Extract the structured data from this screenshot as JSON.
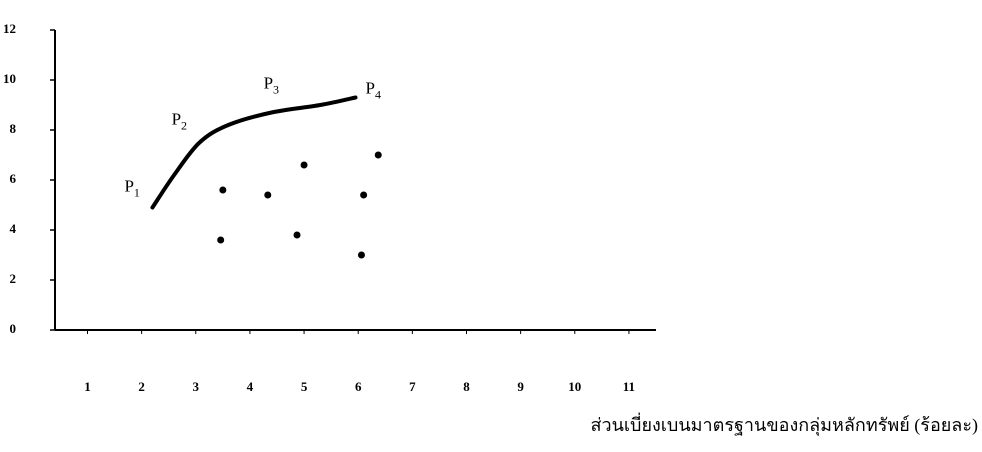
{
  "chart_data": {
    "type": "scatter",
    "x_label": "ส่วนเบี่ยงเบนมาตรฐานของกลุ่มหลักทรัพย์ (ร้อยละ)",
    "xlim": [
      0.4,
      11.5
    ],
    "xticks": [
      1,
      2,
      3,
      4,
      5,
      6,
      7,
      8,
      9,
      10,
      11
    ],
    "ylim": [
      0,
      12
    ],
    "yticks": [
      0,
      2,
      4,
      6,
      8,
      10,
      12
    ],
    "series": [
      {
        "type": "line",
        "color": "#000000",
        "x": [
          2.2,
          2.6,
          3.07,
          3.6,
          4.4,
          5.3,
          5.95
        ],
        "values": [
          4.9,
          6.2,
          7.5,
          8.2,
          8.7,
          9.0,
          9.3
        ],
        "point_labels": [
          {
            "letter": "P",
            "sub": "1"
          },
          null,
          {
            "letter": "P",
            "sub": "2"
          },
          null,
          {
            "letter": "P",
            "sub": "3"
          },
          null,
          {
            "letter": "P",
            "sub": "4"
          }
        ]
      },
      {
        "type": "scatter",
        "color": "#000000",
        "x": [
          3.5,
          3.46,
          4.33,
          5.0,
          4.87,
          6.1,
          6.06,
          6.37
        ],
        "values": [
          5.6,
          3.6,
          5.4,
          6.6,
          3.8,
          5.4,
          3.0,
          7.0
        ]
      }
    ]
  }
}
